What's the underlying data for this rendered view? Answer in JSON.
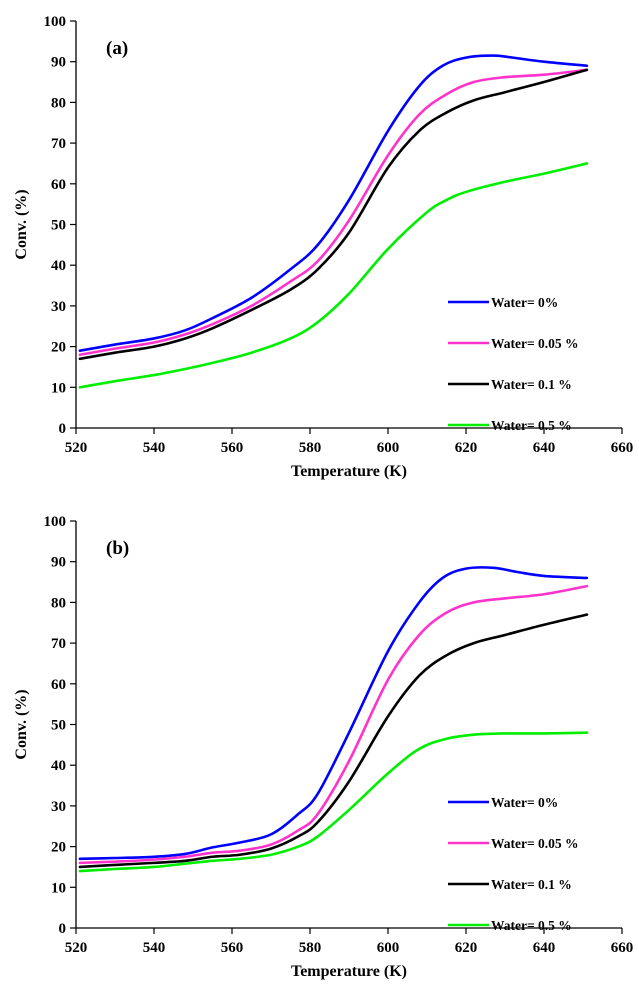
{
  "chart_data": [
    {
      "type": "line",
      "panel_label": "(a)",
      "xlabel": "Temperature (K)",
      "ylabel": "Conv. (%)",
      "xlim": [
        520,
        660
      ],
      "ylim": [
        0,
        100
      ],
      "xticks": [
        "520",
        "540",
        "560",
        "580",
        "600",
        "620",
        "640",
        "660"
      ],
      "yticks": [
        "0",
        "10",
        "20",
        "30",
        "40",
        "50",
        "60",
        "70",
        "80",
        "90",
        "100"
      ],
      "grid": false,
      "legend_position": "bottom-right",
      "series": [
        {
          "name": "Water= 0%",
          "color": "#0000ff",
          "x": [
            521,
            530,
            540,
            548,
            555,
            565,
            575,
            582,
            590,
            600,
            608,
            614,
            620,
            627,
            632,
            640,
            651
          ],
          "y": [
            19,
            20.5,
            22,
            24,
            27,
            32,
            39,
            45,
            56,
            73,
            84,
            89,
            91,
            91.5,
            91,
            90,
            89
          ]
        },
        {
          "name": "Water= 0.05 %",
          "color": "#ff33cc",
          "x": [
            521,
            530,
            540,
            548,
            555,
            565,
            575,
            582,
            590,
            600,
            608,
            615,
            622,
            630,
            640,
            651
          ],
          "y": [
            18,
            19.5,
            21,
            23,
            25.5,
            30,
            36,
            41,
            51,
            67,
            77,
            82,
            85,
            86.2,
            86.8,
            88
          ]
        },
        {
          "name": "Water= 0.1 %",
          "color": "#000000",
          "x": [
            521,
            530,
            540,
            548,
            555,
            565,
            575,
            582,
            590,
            600,
            608,
            615,
            622,
            630,
            640,
            651
          ],
          "y": [
            17,
            18.5,
            20,
            22,
            24.5,
            29,
            34,
            39,
            48,
            64,
            73,
            77.5,
            80.5,
            82.5,
            85,
            88
          ]
        },
        {
          "name": "Water= 0.5 %",
          "color": "#00ee00",
          "x": [
            521,
            530,
            540,
            548,
            555,
            565,
            575,
            582,
            590,
            600,
            610,
            615,
            620,
            630,
            640,
            651
          ],
          "y": [
            10,
            11.5,
            13,
            14.5,
            16,
            18.5,
            22,
            26,
            33,
            44,
            53,
            56,
            58,
            60.5,
            62.5,
            65
          ]
        }
      ]
    },
    {
      "type": "line",
      "panel_label": "(b)",
      "xlabel": "Temperature (K)",
      "ylabel": "Conv. (%)",
      "xlim": [
        520,
        660
      ],
      "ylim": [
        0,
        100
      ],
      "xticks": [
        "520",
        "540",
        "560",
        "580",
        "600",
        "620",
        "640",
        "660"
      ],
      "yticks": [
        "0",
        "10",
        "20",
        "30",
        "40",
        "50",
        "60",
        "70",
        "80",
        "90",
        "100"
      ],
      "grid": false,
      "legend_position": "bottom-right",
      "series": [
        {
          "name": "Water= 0%",
          "color": "#0000ff",
          "x": [
            521,
            530,
            540,
            548,
            555,
            562,
            570,
            577,
            582,
            590,
            600,
            608,
            614,
            620,
            627,
            633,
            640,
            651
          ],
          "y": [
            17,
            17.2,
            17.5,
            18.2,
            19.8,
            21,
            23,
            28,
            33,
            48,
            68,
            80,
            86,
            88.3,
            88.5,
            87.5,
            86.5,
            86
          ]
        },
        {
          "name": "Water= 0.05 %",
          "color": "#ff33cc",
          "x": [
            521,
            530,
            540,
            548,
            555,
            562,
            570,
            577,
            582,
            590,
            600,
            608,
            615,
            622,
            630,
            640,
            651
          ],
          "y": [
            16,
            16.3,
            16.8,
            17.5,
            18.5,
            19,
            20.5,
            24,
            28,
            41,
            61,
            72,
            77.5,
            80,
            81,
            82,
            84
          ]
        },
        {
          "name": "Water= 0.1 %",
          "color": "#000000",
          "x": [
            521,
            530,
            540,
            548,
            555,
            562,
            570,
            577,
            582,
            590,
            600,
            608,
            615,
            622,
            630,
            640,
            651
          ],
          "y": [
            15,
            15.5,
            16,
            16.5,
            17.5,
            18,
            19.5,
            22.5,
            26,
            36,
            52,
            62,
            67,
            70,
            72,
            74.5,
            77
          ]
        },
        {
          "name": "Water= 0.5 %",
          "color": "#00ee00",
          "x": [
            521,
            530,
            540,
            548,
            555,
            562,
            570,
            577,
            582,
            590,
            600,
            608,
            615,
            622,
            630,
            640,
            651
          ],
          "y": [
            14,
            14.5,
            15,
            15.8,
            16.5,
            17,
            18,
            20,
            22.5,
            29,
            38,
            44,
            46.5,
            47.5,
            47.8,
            47.8,
            48
          ]
        }
      ]
    }
  ]
}
